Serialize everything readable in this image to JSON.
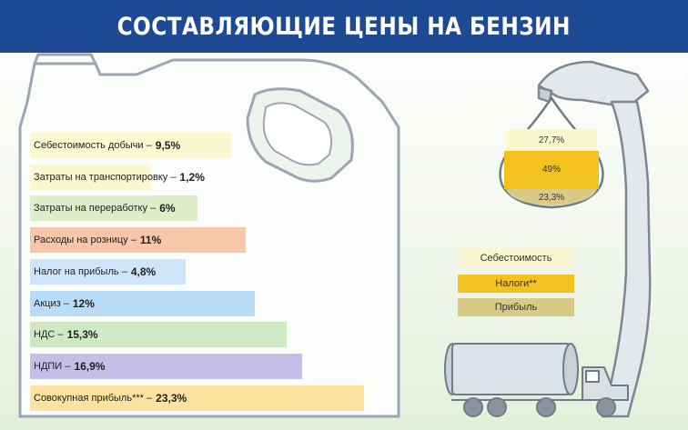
{
  "header": {
    "title": "СОСТАВЛЯЮЩИЕ ЦЕНЫ НА БЕНЗИН"
  },
  "colors": {
    "header_bg": "#1e4a93",
    "cost": "#fbf7cf",
    "taxes": "#f4c21f",
    "profit": "#d8cb86"
  },
  "chart_data": [
    {
      "type": "bar",
      "orientation": "horizontal",
      "categories": [
        "Себестоимость добычи",
        "Затраты на транспортировку",
        "Затраты на переработку",
        "Расходы на розницу",
        "Налог на прибыль",
        "Акциз",
        "НДС",
        "НДПИ",
        "Совокупная прибыль***"
      ],
      "value_labels": [
        "9,5%",
        "1,2%",
        "6%",
        "11%",
        "4,8%",
        "12%",
        "15,3%",
        "16,9%",
        "23,3%"
      ],
      "values": [
        9.5,
        1.2,
        6,
        11,
        4.8,
        12,
        15.3,
        16.9,
        23.3
      ],
      "bar_colors": [
        "#fbf7cf",
        "#fbf7cf",
        "#ddeec9",
        "#f8c6a8",
        "#cfe6fa",
        "#b9dcf8",
        "#cfeac2",
        "#c4bfe8",
        "#fde2a0"
      ]
    },
    {
      "type": "pie",
      "segments": [
        {
          "name": "Себестоимость",
          "value": 27.7,
          "label": "27,7%",
          "color": "#fbf7cf"
        },
        {
          "name": "Налоги**",
          "value": 49,
          "label": "49%",
          "color": "#f4c21f"
        },
        {
          "name": "Прибыль",
          "value": 23.3,
          "label": "23,3%",
          "color": "#d8cb86"
        }
      ]
    }
  ]
}
